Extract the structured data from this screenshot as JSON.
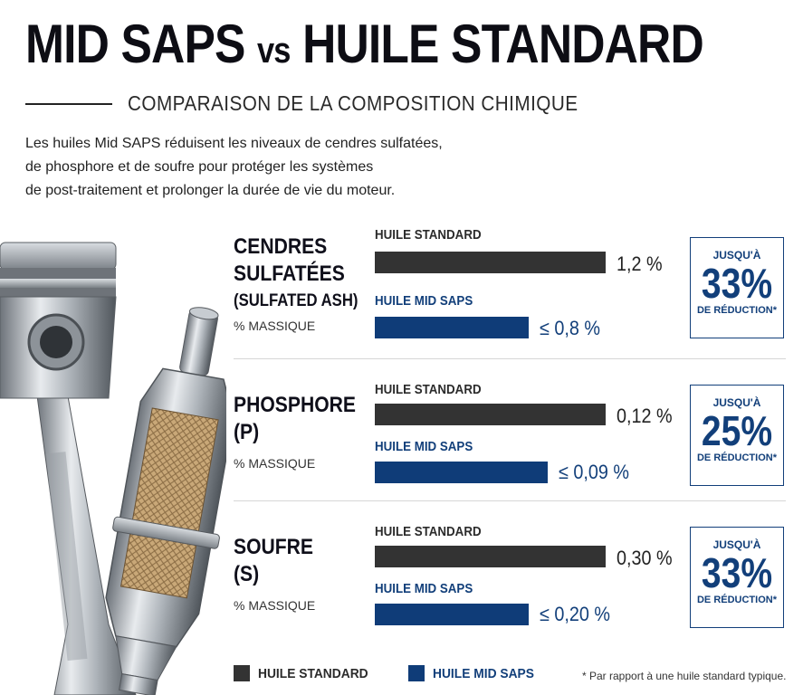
{
  "header": {
    "title_left": "MID SAPS",
    "title_vs": "vs",
    "title_right": "HUILE STANDARD",
    "subtitle": "COMPARAISON DE LA COMPOSITION CHIMIQUE",
    "intro_lines": [
      "Les huiles Mid SAPS réduisent les niveaux de cendres sulfatées,",
      "de phosphore et de soufre pour protéger les systèmes",
      "de post-traitement et prolonger la durée de vie du moteur."
    ]
  },
  "colors": {
    "standard": "#333333",
    "mid_saps": "#0f3c78",
    "badge": "#123f7a"
  },
  "labels": {
    "standard": "HUILE STANDARD",
    "mid_saps": "HUILE MID SAPS",
    "up_to": "JUSQU'À",
    "reduction": "DE RÉDUCTION*"
  },
  "chart_data": [
    {
      "type": "bar",
      "name_lines": [
        "CENDRES",
        "SULFATÉES",
        "(SULFATED ASH)"
      ],
      "unit": "% MASSIQUE",
      "series": [
        {
          "name": "HUILE STANDARD",
          "value": 1.2,
          "display": "1,2 %"
        },
        {
          "name": "HUILE MID SAPS",
          "value": 0.8,
          "display": "≤ 0,8 %"
        }
      ],
      "reduction": "33%"
    },
    {
      "type": "bar",
      "name_lines": [
        "PHOSPHORE",
        "(P)"
      ],
      "unit": "% MASSIQUE",
      "series": [
        {
          "name": "HUILE STANDARD",
          "value": 0.12,
          "display": "0,12 %"
        },
        {
          "name": "HUILE MID SAPS",
          "value": 0.09,
          "display": "≤ 0,09 %"
        }
      ],
      "reduction": "25%"
    },
    {
      "type": "bar",
      "name_lines": [
        "SOUFRE",
        "(S)"
      ],
      "unit": "% MASSIQUE",
      "series": [
        {
          "name": "HUILE STANDARD",
          "value": 0.3,
          "display": "0,30 %"
        },
        {
          "name": "HUILE MID SAPS",
          "value": 0.2,
          "display": "≤ 0,20 %"
        }
      ],
      "reduction": "33%"
    }
  ],
  "legend": {
    "standard": "HUILE STANDARD",
    "mid_saps": "HUILE MID SAPS"
  },
  "footnote": "* Par rapport à une huile standard typique."
}
